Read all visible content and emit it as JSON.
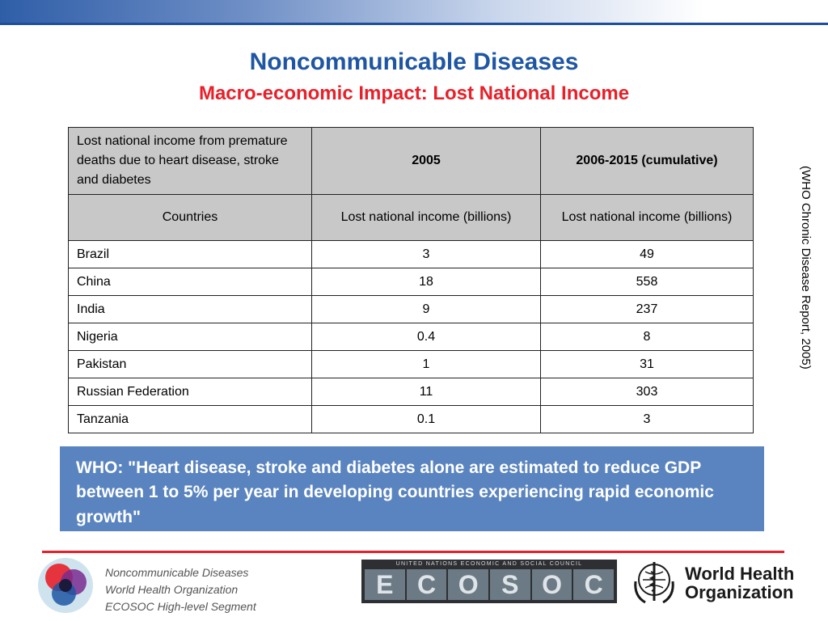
{
  "slide": {
    "title": "Noncommunicable Diseases",
    "subtitle": "Macro-economic Impact: Lost National Income",
    "colors": {
      "title": "#1f56a3",
      "subtitle": "#e8202a",
      "header_fill": "#c8c8c8",
      "quote_box": "#5a84bf",
      "footer_rule": "#e8202a"
    }
  },
  "table": {
    "header1": {
      "label": "Lost national income from premature deaths due to heart disease, stroke and diabetes",
      "col2005": "2005",
      "colCumulative": "2006-2015 (cumulative)"
    },
    "header2": {
      "countries": "Countries",
      "col2005": "Lost national income (billions)",
      "colCumulative": "Lost national income (billions)"
    },
    "rows": [
      {
        "country": "Brazil",
        "v2005": "3",
        "cumulative": "49"
      },
      {
        "country": "China",
        "v2005": "18",
        "cumulative": "558"
      },
      {
        "country": "India",
        "v2005": "9",
        "cumulative": "237"
      },
      {
        "country": "Nigeria",
        "v2005": "0.4",
        "cumulative": "8"
      },
      {
        "country": "Pakistan",
        "v2005": "1",
        "cumulative": "31"
      },
      {
        "country": "Russian Federation",
        "v2005": "11",
        "cumulative": "303"
      },
      {
        "country": "Tanzania",
        "v2005": "0.1",
        "cumulative": "3"
      }
    ]
  },
  "source": "(WHO Chronic Disease Report, 2005)",
  "quote": "WHO: \"Heart disease, stroke and diabetes alone are estimated to reduce GDP between 1 to 5% per year in developing countries experiencing rapid economic growth\"",
  "footer": {
    "line1": "Noncommunicable Diseases",
    "line2": "World Health Organization",
    "line3": "ECOSOC High-level Segment",
    "ecosoc_small": "UNITED NATIONS ECONOMIC AND SOCIAL COUNCIL",
    "ecosoc_letters": [
      "E",
      "C",
      "O",
      "S",
      "O",
      "C"
    ],
    "who_line1": "World Health",
    "who_line2": "Organization"
  }
}
